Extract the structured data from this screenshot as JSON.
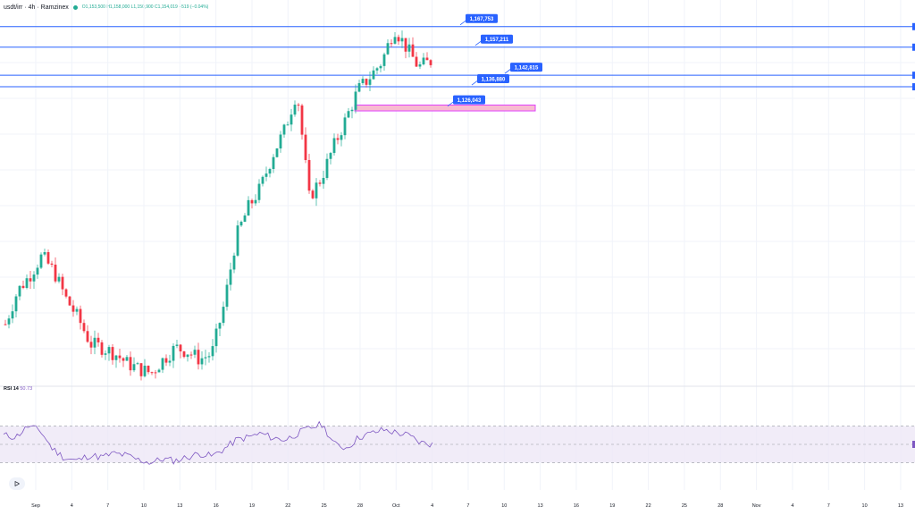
{
  "header": {
    "symbol": "usdt/irr",
    "interval": "4h",
    "exchange": "Ramzinex",
    "ohlc": "O1,153,500 H1,158,000 L1,150,900 C1,154,019 −519 (−0.04%)"
  },
  "rsi": {
    "label": "RSI 14",
    "value": "50.73"
  },
  "colors": {
    "up": "#22ab94",
    "down": "#f23645",
    "level": "#2962ff",
    "zone": "#e040fb",
    "rsi_line": "#7e57c2",
    "rsi_band": "#ede7f6"
  },
  "icons": {
    "logo": "tradingview-logo-icon"
  },
  "chart_data": {
    "type": "candlestick",
    "x_ticks": [
      "Sep",
      "4",
      "7",
      "10",
      "13",
      "16",
      "19",
      "22",
      "25",
      "28",
      "Oct",
      "4",
      "7",
      "10",
      "13",
      "16",
      "19",
      "22",
      "25",
      "28",
      "Nov",
      "4",
      "7",
      "10",
      "13"
    ],
    "levels": [
      {
        "label": "1,167,753",
        "value": 1167753
      },
      {
        "label": "1,157,211",
        "value": 1157211
      },
      {
        "label": "1,142,815",
        "value": 1142815
      },
      {
        "label": "1,136,880",
        "value": 1136880
      },
      {
        "label": "1,126,043",
        "value": 1126043
      }
    ],
    "zone": {
      "from": 1124500,
      "to": 1127500
    },
    "price_path": [
      1015,
      1032,
      1040,
      1050,
      1042,
      1028,
      1018,
      1005,
      1003,
      1000,
      995,
      992,
      990,
      997,
      1003,
      1001,
      997,
      1000,
      1025,
      1060,
      1075,
      1085,
      1102,
      1115,
      1135,
      1080,
      1090,
      1106,
      1120,
      1135,
      1142,
      1150,
      1167,
      1157,
      1147,
      1150
    ],
    "rsi_path": [
      60,
      58,
      70,
      65,
      45,
      35,
      32,
      38,
      36,
      40,
      38,
      33,
      30,
      34,
      32,
      36,
      40,
      37,
      45,
      55,
      58,
      62,
      57,
      55,
      62,
      68,
      72,
      50,
      46,
      58,
      62,
      66,
      63,
      60,
      52,
      50
    ],
    "rsi_range": [
      0,
      100
    ],
    "rsi_bands": [
      70,
      30
    ]
  }
}
